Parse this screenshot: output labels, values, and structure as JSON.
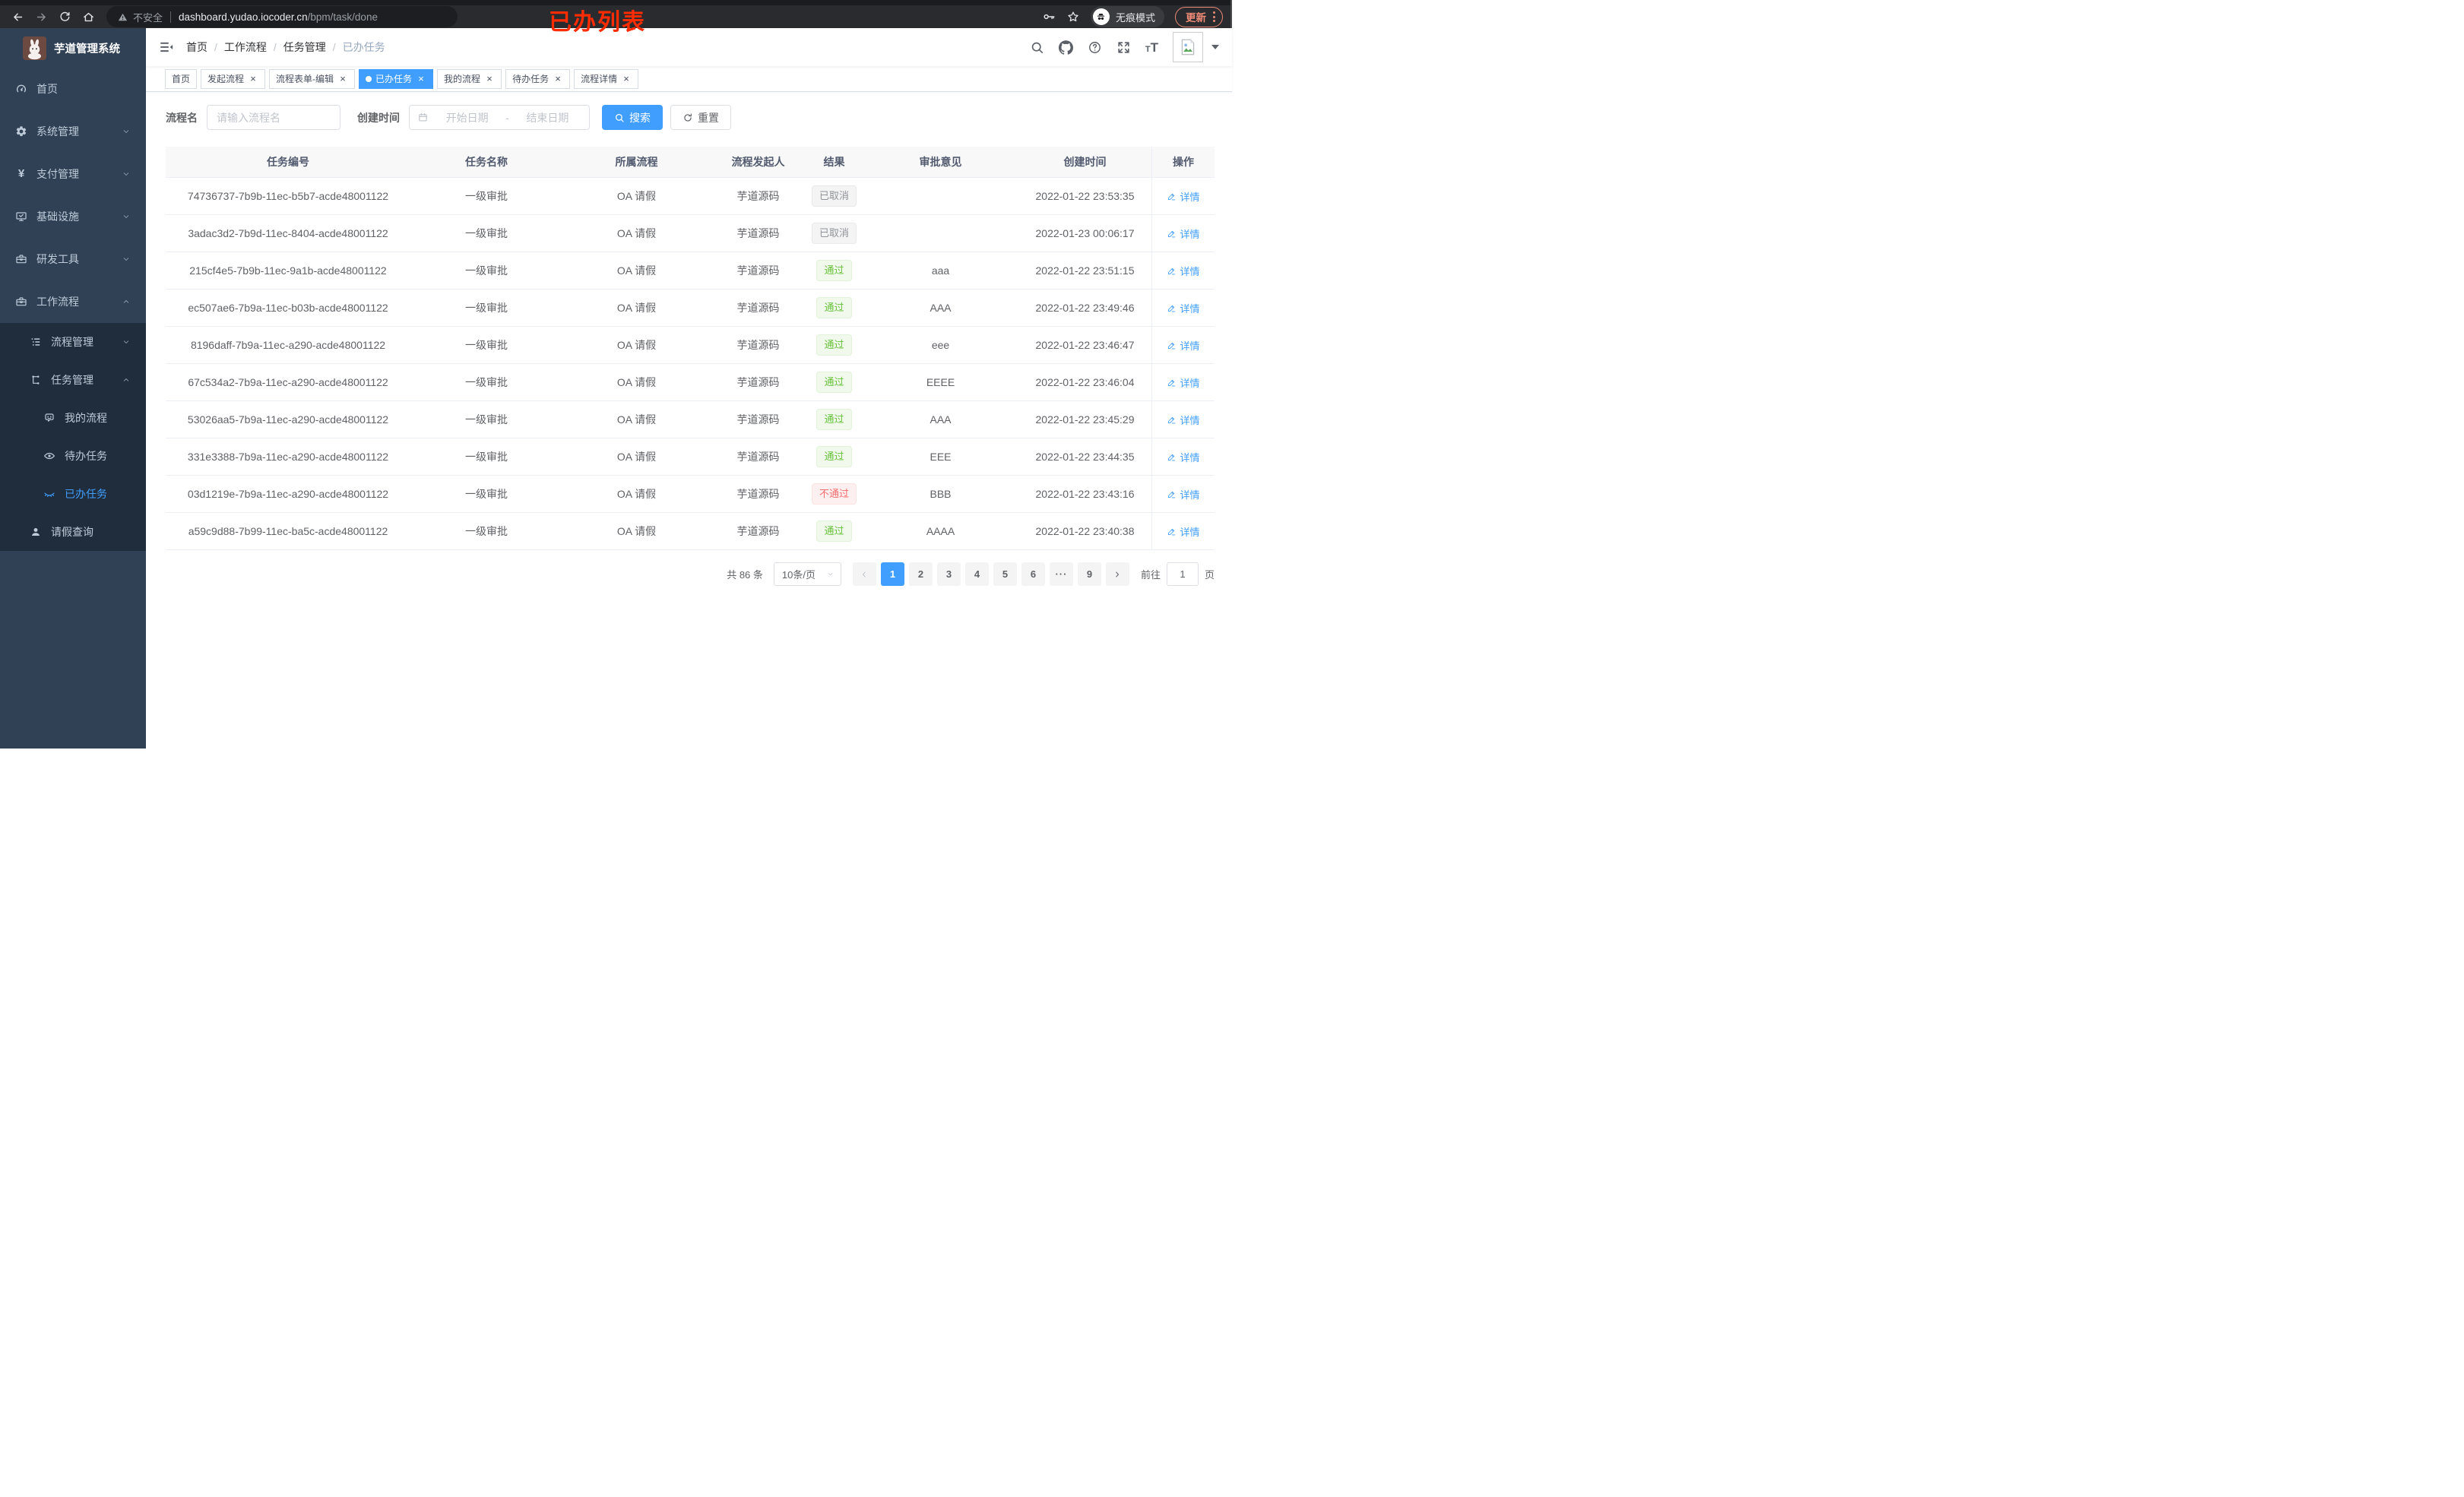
{
  "browser": {
    "security_label": "不安全",
    "url_host": "dashboard.yudao.iocoder.cn",
    "url_path": "/bpm/task/done",
    "incognito_label": "无痕模式",
    "update_label": "更新",
    "annotation": "已办列表",
    "annotation_color": "#fe2c00",
    "left_icons": [
      "back-icon",
      "forward-icon",
      "reload-icon",
      "home-icon"
    ],
    "right_icons": [
      "key-icon",
      "star-icon",
      "incognito-icon",
      "more-dots-icon"
    ]
  },
  "sidebar": {
    "app_title": "芋道管理系统",
    "logo_icon": "rabbit-logo",
    "menu": [
      {
        "key": "home",
        "label": "首页",
        "icon": "dashboard-icon",
        "level": 0
      },
      {
        "key": "system",
        "label": "系统管理",
        "icon": "gear-icon",
        "level": 0,
        "chevron": "down"
      },
      {
        "key": "payment",
        "label": "支付管理",
        "icon": "yuan-icon",
        "level": 0,
        "chevron": "down"
      },
      {
        "key": "infra",
        "label": "基础设施",
        "icon": "monitor-icon",
        "level": 0,
        "chevron": "down"
      },
      {
        "key": "dev-tools",
        "label": "研发工具",
        "icon": "toolbox-icon",
        "level": 0,
        "chevron": "down"
      },
      {
        "key": "workflow",
        "label": "工作流程",
        "icon": "briefcase-icon",
        "level": 0,
        "chevron": "up"
      },
      {
        "key": "process-mgmt",
        "label": "流程管理",
        "icon": "tree-list-icon",
        "level": 1,
        "chevron": "down"
      },
      {
        "key": "task-mgmt",
        "label": "任务管理",
        "icon": "flow-icon",
        "level": 1,
        "chevron": "up"
      },
      {
        "key": "my-process",
        "label": "我的流程",
        "icon": "face-icon",
        "level": 2
      },
      {
        "key": "todo-tasks",
        "label": "待办任务",
        "icon": "eye-open-icon",
        "level": 2
      },
      {
        "key": "done-tasks",
        "label": "已办任务",
        "icon": "eye-closed-icon",
        "level": 2,
        "active": true
      },
      {
        "key": "leave-query",
        "label": "请假查询",
        "icon": "user-icon",
        "level": 1
      }
    ]
  },
  "navbar": {
    "breadcrumb": [
      "首页",
      "工作流程",
      "任务管理",
      "已办任务"
    ],
    "right_icons": [
      "search-icon",
      "github-icon",
      "help-icon",
      "fullscreen-icon",
      "font-size-icon",
      "avatar",
      "caret-down-icon"
    ]
  },
  "tabs": [
    {
      "key": "home",
      "label": "首页",
      "closable": false
    },
    {
      "key": "start-process",
      "label": "发起流程",
      "closable": true
    },
    {
      "key": "form-edit",
      "label": "流程表单-编辑",
      "closable": true
    },
    {
      "key": "done-tasks",
      "label": "已办任务",
      "closable": true,
      "active": true
    },
    {
      "key": "my-process",
      "label": "我的流程",
      "closable": true
    },
    {
      "key": "todo-tasks",
      "label": "待办任务",
      "closable": true
    },
    {
      "key": "process-detail",
      "label": "流程详情",
      "closable": true
    }
  ],
  "filters": {
    "name_label": "流程名",
    "name_placeholder": "请输入流程名",
    "time_label": "创建时间",
    "start_placeholder": "开始日期",
    "range_separator": "-",
    "end_placeholder": "结束日期",
    "search_label": "搜索",
    "reset_label": "重置"
  },
  "table": {
    "columns": [
      "任务编号",
      "任务名称",
      "所属流程",
      "流程发起人",
      "结果",
      "审批意见",
      "创建时间",
      "操作"
    ],
    "action_label": "详情",
    "rows": [
      {
        "id": "74736737-7b9b-11ec-b5b7-acde48001122",
        "name": "一级审批",
        "process": "OA 请假",
        "starter": "芋道源码",
        "result": "已取消",
        "result_type": "cancel",
        "opinion": "",
        "time": "2022-01-22 23:53:35"
      },
      {
        "id": "3adac3d2-7b9d-11ec-8404-acde48001122",
        "name": "一级审批",
        "process": "OA 请假",
        "starter": "芋道源码",
        "result": "已取消",
        "result_type": "cancel",
        "opinion": "",
        "time": "2022-01-23 00:06:17"
      },
      {
        "id": "215cf4e5-7b9b-11ec-9a1b-acde48001122",
        "name": "一级审批",
        "process": "OA 请假",
        "starter": "芋道源码",
        "result": "通过",
        "result_type": "pass",
        "opinion": "aaa",
        "time": "2022-01-22 23:51:15"
      },
      {
        "id": "ec507ae6-7b9a-11ec-b03b-acde48001122",
        "name": "一级审批",
        "process": "OA 请假",
        "starter": "芋道源码",
        "result": "通过",
        "result_type": "pass",
        "opinion": "AAA",
        "time": "2022-01-22 23:49:46"
      },
      {
        "id": "8196daff-7b9a-11ec-a290-acde48001122",
        "name": "一级审批",
        "process": "OA 请假",
        "starter": "芋道源码",
        "result": "通过",
        "result_type": "pass",
        "opinion": "eee",
        "time": "2022-01-22 23:46:47"
      },
      {
        "id": "67c534a2-7b9a-11ec-a290-acde48001122",
        "name": "一级审批",
        "process": "OA 请假",
        "starter": "芋道源码",
        "result": "通过",
        "result_type": "pass",
        "opinion": "EEEE",
        "time": "2022-01-22 23:46:04"
      },
      {
        "id": "53026aa5-7b9a-11ec-a290-acde48001122",
        "name": "一级审批",
        "process": "OA 请假",
        "starter": "芋道源码",
        "result": "通过",
        "result_type": "pass",
        "opinion": "AAA",
        "time": "2022-01-22 23:45:29"
      },
      {
        "id": "331e3388-7b9a-11ec-a290-acde48001122",
        "name": "一级审批",
        "process": "OA 请假",
        "starter": "芋道源码",
        "result": "通过",
        "result_type": "pass",
        "opinion": "EEE",
        "time": "2022-01-22 23:44:35"
      },
      {
        "id": "03d1219e-7b9a-11ec-a290-acde48001122",
        "name": "一级审批",
        "process": "OA 请假",
        "starter": "芋道源码",
        "result": "不通过",
        "result_type": "fail",
        "opinion": "BBB",
        "time": "2022-01-22 23:43:16"
      },
      {
        "id": "a59c9d88-7b99-11ec-ba5c-acde48001122",
        "name": "一级审批",
        "process": "OA 请假",
        "starter": "芋道源码",
        "result": "通过",
        "result_type": "pass",
        "opinion": "AAAA",
        "time": "2022-01-22 23:40:38"
      }
    ]
  },
  "pagination": {
    "total_text": "共 86 条",
    "page_size": "10条/页",
    "pages": [
      "1",
      "2",
      "3",
      "4",
      "5",
      "6",
      "more",
      "9"
    ],
    "active_page": "1",
    "goto_label": "前往",
    "goto_value": "1",
    "goto_suffix": "页"
  },
  "ui": {
    "close_glyph": "×",
    "more_glyph": "···",
    "breadcrumb_separator": "/"
  },
  "colors": {
    "accent": "#409eff",
    "pass": "#67c23a",
    "fail": "#f56c6c",
    "cancel": "#909399",
    "sidebar_bg": "#304156",
    "submenu_bg": "#1f2d3d",
    "annotation": "#fe2c00"
  }
}
